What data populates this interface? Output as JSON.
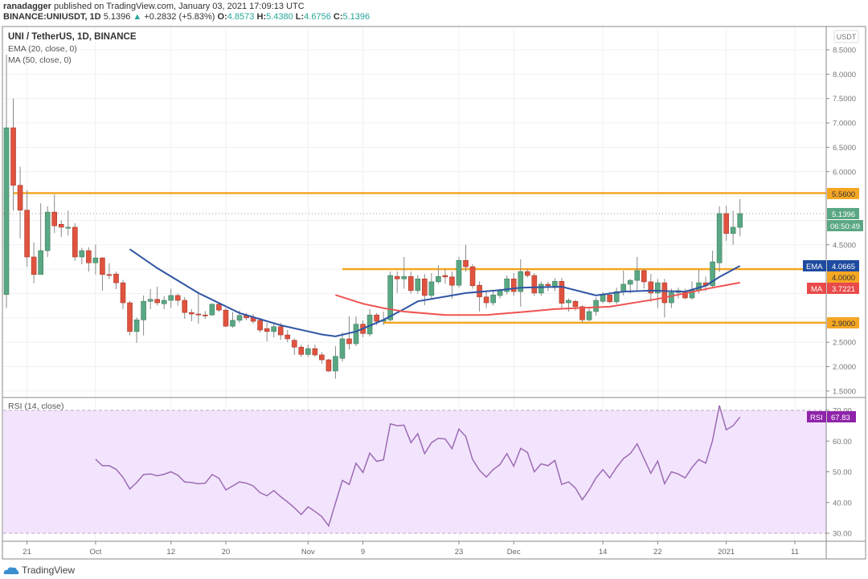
{
  "header": {
    "publisher": "ranadagger",
    "published_text": "published on TradingView.com, January 03, 2021 17:09:13 UTC",
    "symbol": "BINANCE:UNIUSDT, 1D",
    "last": "5.1396",
    "change": "+0.2832 (+5.83%)",
    "o_label": "O:",
    "o": "4.8573",
    "h_label": "H:",
    "h": "5.4380",
    "l_label": "L:",
    "l": "4.6756",
    "c_label": "C:",
    "c": "5.1396"
  },
  "legend": {
    "title": "UNI / TetherUS, 1D, BINANCE",
    "ema": "EMA (20, close, 0)",
    "ma": "MA (50, close, 0)",
    "rsi": "RSI (14, close)"
  },
  "currency": "USDT",
  "colors": {
    "up": "#5aa783",
    "down": "#e0533f",
    "level": "#f5a623",
    "ema": "#2f55a4",
    "ma": "#ef5350",
    "rsi": "#9b6bb3",
    "rsi_fill": "#f3e4fd"
  },
  "badges": {
    "resistance": "5.5600",
    "last": "5.1396",
    "countdown": "06:50:49",
    "ema_tag": "EMA",
    "ema": "4.0665",
    "support_mid": "4.0000",
    "ma_tag": "MA",
    "ma": "3.7221",
    "support_low": "2.9000",
    "rsi_tag": "RSI",
    "rsi": "67.83"
  },
  "logo": "TradingView",
  "chart_data": {
    "type": "candlestick",
    "price_ticks": [
      "8.5000",
      "8.0000",
      "7.5000",
      "7.0000",
      "6.5000",
      "6.0000",
      "4.5000",
      "2.5000",
      "2.0000",
      "1.5000"
    ],
    "rsi_ticks": [
      "70.00",
      "60.00",
      "50.00",
      "40.00",
      "30.00"
    ],
    "rsi_band": [
      30,
      70
    ],
    "ylim": [
      1.5,
      8.5
    ],
    "x_ticks": [
      {
        "date": "2020-09-21",
        "label": "21"
      },
      {
        "date": "2020-10-01",
        "label": "Oct"
      },
      {
        "date": "2020-10-12",
        "label": "12"
      },
      {
        "date": "2020-10-20",
        "label": "20"
      },
      {
        "date": "2020-11-01",
        "label": "Nov"
      },
      {
        "date": "2020-11-09",
        "label": "9"
      },
      {
        "date": "2020-11-23",
        "label": "23"
      },
      {
        "date": "2020-12-01",
        "label": "Dec"
      },
      {
        "date": "2020-12-14",
        "label": "14"
      },
      {
        "date": "2020-12-22",
        "label": "22"
      },
      {
        "date": "2021-01-01",
        "label": "2021"
      },
      {
        "date": "2021-01-11",
        "label": "11"
      }
    ],
    "levels": [
      {
        "price": 5.56,
        "from": "2020-09-19"
      },
      {
        "price": 4.0,
        "from": "2020-11-06"
      },
      {
        "price": 2.9,
        "from": "2020-11-12"
      }
    ],
    "candles": [
      [
        "2020-09-18",
        3.48,
        8.4,
        3.2,
        6.9
      ],
      [
        "2020-09-19",
        6.9,
        7.5,
        5.2,
        5.72
      ],
      [
        "2020-09-20",
        5.72,
        6.1,
        4.63,
        5.21
      ],
      [
        "2020-09-21",
        5.21,
        5.62,
        4.05,
        4.25
      ],
      [
        "2020-09-22",
        4.25,
        4.55,
        3.71,
        3.89
      ],
      [
        "2020-09-23",
        3.89,
        5.35,
        3.89,
        4.38
      ],
      [
        "2020-09-24",
        4.38,
        5.29,
        4.25,
        5.17
      ],
      [
        "2020-09-25",
        5.17,
        5.53,
        4.74,
        4.89
      ],
      [
        "2020-09-26",
        4.92,
        5.0,
        4.66,
        4.86
      ],
      [
        "2020-09-27",
        4.86,
        5.2,
        4.69,
        4.86
      ],
      [
        "2020-09-28",
        4.86,
        4.94,
        4.17,
        4.25
      ],
      [
        "2020-09-29",
        4.25,
        4.44,
        4.1,
        4.38
      ],
      [
        "2020-09-30",
        4.38,
        4.45,
        3.95,
        4.13
      ],
      [
        "2020-10-01",
        4.13,
        4.5,
        3.89,
        4.23
      ],
      [
        "2020-10-02",
        4.23,
        4.25,
        3.56,
        3.89
      ],
      [
        "2020-10-03",
        3.89,
        4.12,
        3.8,
        3.88
      ],
      [
        "2020-10-04",
        3.9,
        3.95,
        3.59,
        3.72
      ],
      [
        "2020-10-05",
        3.72,
        3.78,
        3.18,
        3.31
      ],
      [
        "2020-10-06",
        3.31,
        3.35,
        2.64,
        2.72
      ],
      [
        "2020-10-07",
        2.72,
        3.01,
        2.49,
        2.96
      ],
      [
        "2020-10-08",
        2.96,
        3.46,
        2.64,
        3.34
      ],
      [
        "2020-10-09",
        3.34,
        3.59,
        3.18,
        3.38
      ],
      [
        "2020-10-10",
        3.38,
        3.64,
        3.25,
        3.31
      ],
      [
        "2020-10-11",
        3.29,
        3.45,
        3.18,
        3.36
      ],
      [
        "2020-10-12",
        3.36,
        3.6,
        3.2,
        3.46
      ],
      [
        "2020-10-13",
        3.46,
        3.5,
        3.25,
        3.36
      ],
      [
        "2020-10-14",
        3.36,
        3.43,
        2.98,
        3.11
      ],
      [
        "2020-10-15",
        3.11,
        3.18,
        2.93,
        3.08
      ],
      [
        "2020-10-16",
        3.08,
        3.54,
        2.88,
        3.06
      ],
      [
        "2020-10-17",
        3.06,
        3.14,
        2.98,
        3.05
      ],
      [
        "2020-10-18",
        3.06,
        3.3,
        3.04,
        3.28
      ],
      [
        "2020-10-19",
        3.28,
        3.32,
        3.12,
        3.16
      ],
      [
        "2020-10-20",
        3.16,
        3.2,
        2.81,
        2.83
      ],
      [
        "2020-10-21",
        2.83,
        3.12,
        2.8,
        2.95
      ],
      [
        "2020-10-22",
        2.95,
        3.15,
        2.9,
        3.05
      ],
      [
        "2020-10-23",
        3.05,
        3.1,
        2.95,
        3.0
      ],
      [
        "2020-10-24",
        3.01,
        3.08,
        2.88,
        2.93
      ],
      [
        "2020-10-25",
        2.95,
        3.0,
        2.7,
        2.75
      ],
      [
        "2020-10-26",
        2.78,
        2.9,
        2.52,
        2.72
      ],
      [
        "2020-10-27",
        2.72,
        2.9,
        2.6,
        2.82
      ],
      [
        "2020-10-28",
        2.82,
        2.9,
        2.55,
        2.65
      ],
      [
        "2020-10-29",
        2.65,
        2.75,
        2.5,
        2.57
      ],
      [
        "2020-10-30",
        2.54,
        2.58,
        2.24,
        2.4
      ],
      [
        "2020-10-31",
        2.4,
        2.45,
        2.2,
        2.25
      ],
      [
        "2020-11-01",
        2.25,
        2.45,
        2.2,
        2.37
      ],
      [
        "2020-11-02",
        2.37,
        2.45,
        2.2,
        2.24
      ],
      [
        "2020-11-03",
        2.24,
        2.3,
        2.06,
        2.14
      ],
      [
        "2020-11-04",
        2.14,
        2.16,
        1.89,
        1.91
      ],
      [
        "2020-11-05",
        1.91,
        2.42,
        1.75,
        2.21
      ],
      [
        "2020-11-06",
        2.17,
        2.7,
        2.1,
        2.57
      ],
      [
        "2020-11-07",
        2.57,
        3.03,
        2.35,
        2.47
      ],
      [
        "2020-11-08",
        2.47,
        3.03,
        2.42,
        2.87
      ],
      [
        "2020-11-09",
        2.87,
        2.95,
        2.6,
        2.68
      ],
      [
        "2020-11-10",
        2.67,
        3.18,
        2.62,
        3.06
      ],
      [
        "2020-11-11",
        3.06,
        3.1,
        2.85,
        2.93
      ],
      [
        "2020-11-12",
        2.93,
        3.13,
        2.85,
        2.96
      ],
      [
        "2020-11-13",
        2.96,
        3.95,
        2.93,
        3.87
      ],
      [
        "2020-11-14",
        3.85,
        3.95,
        3.51,
        3.8
      ],
      [
        "2020-11-15",
        3.8,
        4.25,
        3.6,
        3.85
      ],
      [
        "2020-11-16",
        3.85,
        3.95,
        3.5,
        3.56
      ],
      [
        "2020-11-17",
        3.56,
        3.88,
        3.5,
        3.8
      ],
      [
        "2020-11-18",
        3.8,
        3.9,
        3.26,
        3.46
      ],
      [
        "2020-11-19",
        3.46,
        3.92,
        3.4,
        3.74
      ],
      [
        "2020-11-20",
        3.74,
        4.08,
        3.7,
        3.85
      ],
      [
        "2020-11-21",
        3.87,
        4.0,
        3.7,
        3.84
      ],
      [
        "2020-11-22",
        3.84,
        3.95,
        3.39,
        3.67
      ],
      [
        "2020-11-23",
        3.67,
        4.25,
        3.62,
        4.18
      ],
      [
        "2020-11-24",
        4.18,
        4.5,
        3.95,
        4.05
      ],
      [
        "2020-11-25",
        4.05,
        4.1,
        3.6,
        3.66
      ],
      [
        "2020-11-26",
        3.67,
        3.75,
        3.13,
        3.43
      ],
      [
        "2020-11-27",
        3.43,
        3.55,
        3.2,
        3.31
      ],
      [
        "2020-11-28",
        3.31,
        3.57,
        3.25,
        3.47
      ],
      [
        "2020-11-29",
        3.46,
        3.6,
        3.4,
        3.56
      ],
      [
        "2020-11-30",
        3.54,
        3.87,
        3.48,
        3.8
      ],
      [
        "2020-12-01",
        3.8,
        3.92,
        3.45,
        3.54
      ],
      [
        "2020-12-02",
        3.54,
        4.2,
        3.23,
        3.95
      ],
      [
        "2020-12-03",
        3.95,
        4.0,
        3.83,
        3.87
      ],
      [
        "2020-12-04",
        3.87,
        3.92,
        3.45,
        3.51
      ],
      [
        "2020-12-05",
        3.51,
        3.75,
        3.45,
        3.69
      ],
      [
        "2020-12-06",
        3.69,
        3.75,
        3.55,
        3.66
      ],
      [
        "2020-12-07",
        3.62,
        3.82,
        3.55,
        3.75
      ],
      [
        "2020-12-08",
        3.75,
        3.82,
        3.2,
        3.3
      ],
      [
        "2020-12-09",
        3.31,
        3.4,
        3.13,
        3.36
      ],
      [
        "2020-12-10",
        3.34,
        3.37,
        3.15,
        3.23
      ],
      [
        "2020-12-11",
        3.23,
        3.26,
        2.9,
        2.96
      ],
      [
        "2020-12-12",
        2.96,
        3.2,
        2.93,
        3.13
      ],
      [
        "2020-12-13",
        3.13,
        3.42,
        3.05,
        3.36
      ],
      [
        "2020-12-14",
        3.34,
        3.53,
        3.3,
        3.47
      ],
      [
        "2020-12-15",
        3.47,
        3.53,
        3.3,
        3.33
      ],
      [
        "2020-12-16",
        3.33,
        3.62,
        3.28,
        3.54
      ],
      [
        "2020-12-17",
        3.54,
        3.97,
        3.46,
        3.69
      ],
      [
        "2020-12-18",
        3.69,
        3.8,
        3.5,
        3.77
      ],
      [
        "2020-12-19",
        3.77,
        4.25,
        3.55,
        3.97
      ],
      [
        "2020-12-20",
        3.97,
        4.0,
        3.6,
        3.74
      ],
      [
        "2020-12-21",
        3.74,
        3.9,
        3.33,
        3.51
      ],
      [
        "2020-12-22",
        3.51,
        3.8,
        3.2,
        3.72
      ],
      [
        "2020-12-23",
        3.72,
        3.8,
        3.01,
        3.31
      ],
      [
        "2020-12-24",
        3.31,
        3.6,
        3.2,
        3.52
      ],
      [
        "2020-12-25",
        3.52,
        3.62,
        3.4,
        3.56
      ],
      [
        "2020-12-26",
        3.54,
        3.6,
        3.38,
        3.41
      ],
      [
        "2020-12-27",
        3.41,
        3.75,
        3.37,
        3.57
      ],
      [
        "2020-12-28",
        3.57,
        3.99,
        3.5,
        3.72
      ],
      [
        "2020-12-29",
        3.72,
        3.85,
        3.55,
        3.66
      ],
      [
        "2020-12-30",
        3.66,
        4.38,
        3.6,
        4.15
      ],
      [
        "2020-12-31",
        4.13,
        5.29,
        3.94,
        5.14
      ],
      [
        "2021-01-01",
        5.14,
        5.3,
        4.58,
        4.73
      ],
      [
        "2021-01-02",
        4.73,
        5.2,
        4.5,
        4.86
      ],
      [
        "2021-01-03",
        4.8573,
        5.438,
        4.6756,
        5.1396
      ]
    ],
    "ema20": [
      [
        "2020-10-06",
        4.41
      ],
      [
        "2020-10-10",
        4.02
      ],
      [
        "2020-10-16",
        3.51
      ],
      [
        "2020-10-22",
        3.1
      ],
      [
        "2020-10-28",
        2.85
      ],
      [
        "2020-11-03",
        2.66
      ],
      [
        "2020-11-05",
        2.62
      ],
      [
        "2020-11-08",
        2.72
      ],
      [
        "2020-11-12",
        2.96
      ],
      [
        "2020-11-15",
        3.18
      ],
      [
        "2020-11-17",
        3.34
      ],
      [
        "2020-11-22",
        3.46
      ],
      [
        "2020-11-24",
        3.51
      ],
      [
        "2020-11-29",
        3.57
      ],
      [
        "2020-12-02",
        3.62
      ],
      [
        "2020-12-08",
        3.64
      ],
      [
        "2020-12-13",
        3.46
      ],
      [
        "2020-12-17",
        3.54
      ],
      [
        "2020-12-21",
        3.56
      ],
      [
        "2020-12-26",
        3.54
      ],
      [
        "2020-12-29",
        3.66
      ],
      [
        "2020-12-31",
        3.84
      ],
      [
        "2021-01-03",
        4.0665
      ]
    ],
    "ma50": [
      [
        "2020-11-05",
        3.47
      ],
      [
        "2020-11-09",
        3.29
      ],
      [
        "2020-11-12",
        3.2
      ],
      [
        "2020-11-15",
        3.13
      ],
      [
        "2020-11-21",
        3.06
      ],
      [
        "2020-11-27",
        3.06
      ],
      [
        "2020-12-03",
        3.13
      ],
      [
        "2020-12-07",
        3.18
      ],
      [
        "2020-12-15",
        3.23
      ],
      [
        "2020-12-22",
        3.39
      ],
      [
        "2020-12-30",
        3.62
      ],
      [
        "2021-01-03",
        3.7221
      ]
    ],
    "rsi14": [
      54.1,
      52.0,
      52.0,
      50.8,
      48.2,
      44.4,
      46.5,
      49.1,
      49.3,
      48.7,
      49.2,
      50.0,
      48.9,
      46.7,
      46.5,
      46.1,
      46.3,
      49.1,
      47.9,
      44.1,
      45.4,
      46.7,
      46.3,
      45.4,
      43.2,
      42.2,
      43.9,
      41.9,
      40.2,
      38.3,
      36.1,
      38.6,
      37.1,
      35.4,
      32.4,
      39.8,
      47.2,
      45.9,
      52.8,
      49.8,
      56.1,
      53.4,
      53.9,
      65.6,
      65.0,
      65.2,
      59.5,
      62.4,
      55.9,
      59.5,
      60.9,
      60.7,
      57.5,
      63.9,
      61.5,
      54.0,
      50.5,
      48.3,
      50.7,
      52.4,
      55.9,
      51.8,
      57.6,
      56.3,
      50.0,
      52.6,
      52.0,
      53.7,
      45.9,
      46.7,
      44.7,
      40.9,
      44.1,
      48.0,
      50.7,
      48.0,
      51.5,
      54.3,
      55.9,
      59.1,
      54.3,
      49.5,
      53.5,
      46.1,
      50.0,
      49.3,
      48.0,
      51.4,
      54.0,
      52.8,
      60.2,
      71.6,
      63.7,
      65.0,
      67.83
    ]
  }
}
